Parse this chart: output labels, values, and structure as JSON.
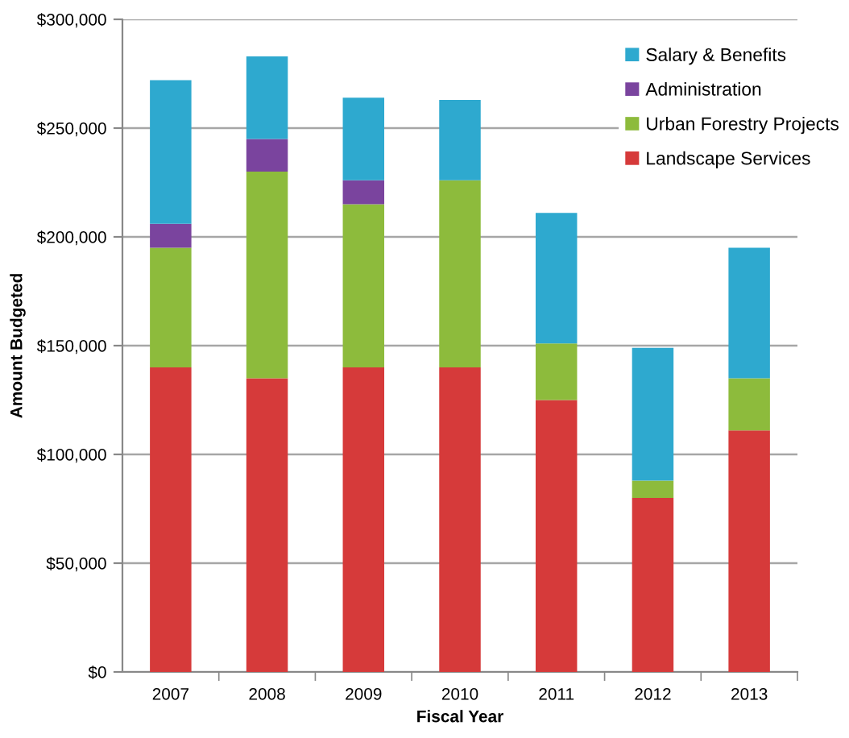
{
  "chart_data": {
    "type": "bar",
    "stacked": true,
    "xlabel": "Fiscal Year",
    "ylabel": "Amount Budgeted",
    "categories": [
      "2007",
      "2008",
      "2009",
      "2010",
      "2011",
      "2012",
      "2013"
    ],
    "series": [
      {
        "name": "Landscape Services",
        "color": "#d63a3a",
        "values": [
          140000,
          135000,
          140000,
          140000,
          125000,
          80000,
          111000
        ]
      },
      {
        "name": "Urban Forestry Projects",
        "color": "#8dbb3c",
        "values": [
          55000,
          95000,
          75000,
          86000,
          26000,
          8000,
          24000
        ]
      },
      {
        "name": "Administration",
        "color": "#7a449e",
        "values": [
          11000,
          15000,
          11000,
          null,
          null,
          null,
          null
        ]
      },
      {
        "name": "Salary & Benefits",
        "color": "#2ea9cf",
        "values": [
          66000,
          38000,
          38000,
          37000,
          60000,
          61000,
          60000
        ]
      }
    ],
    "ylim": [
      0,
      300000
    ],
    "yticks": [
      {
        "value": 0,
        "label": "$0"
      },
      {
        "value": 50000,
        "label": "$50,000"
      },
      {
        "value": 100000,
        "label": "$100,000"
      },
      {
        "value": 150000,
        "label": "$150,000"
      },
      {
        "value": 200000,
        "label": "$200,000"
      },
      {
        "value": 250000,
        "label": "$250,000"
      },
      {
        "value": 300000,
        "label": "$300,000"
      }
    ],
    "grid": "y",
    "legend": "top right"
  }
}
